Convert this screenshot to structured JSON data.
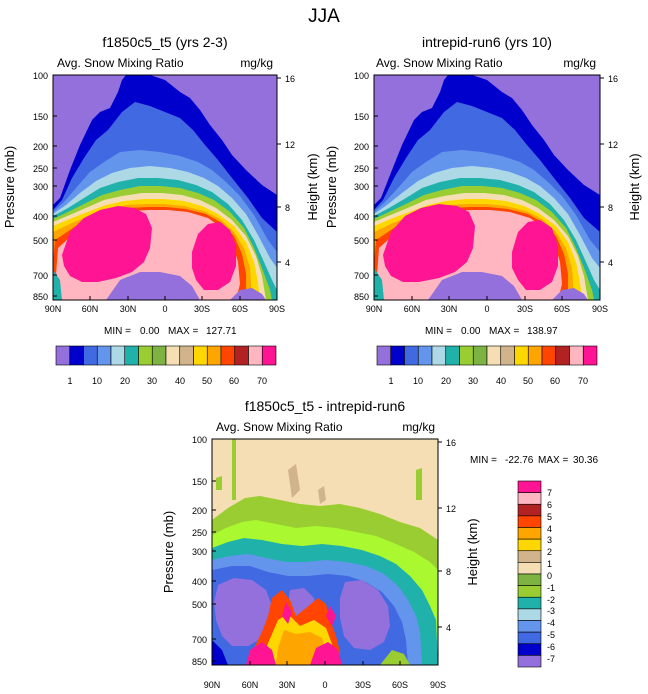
{
  "figure_title": "JJA",
  "colors": {
    "background_purple": "#9370DB",
    "land_tan": "#F5DEB3"
  },
  "chart_data": [
    {
      "type": "heatmap",
      "title": "f1850c5_t5 (yrs 2-3)",
      "left_label": "Avg. Snow Mixing Ratio",
      "right_label": "mg/kg",
      "ylabel": "Pressure (mb)",
      "ylabel_right": "Height (km)",
      "x_ticks": [
        "90N",
        "60N",
        "30N",
        "0",
        "30S",
        "60S",
        "90S"
      ],
      "x_range": [
        90,
        -90
      ],
      "y_ticks": [
        "100",
        "150",
        "200",
        "250",
        "300",
        "400",
        "500",
        "700",
        "850"
      ],
      "y_range": [
        100,
        925
      ],
      "height_ticks": [
        "16",
        "12",
        "8",
        "4"
      ],
      "stats": {
        "min_label": "MIN =",
        "min": "0.00",
        "max_label": "MAX =",
        "max": "127.71"
      },
      "colorbar": {
        "orientation": "horizontal",
        "tick_labels": [
          "1",
          "10",
          "20",
          "30",
          "40",
          "50",
          "60",
          "70"
        ],
        "colors": [
          "#9370DB",
          "#0000CD",
          "#4169E1",
          "#6495ED",
          "#ADD8E6",
          "#20B2AA",
          "#9ACD32",
          "#7CB342",
          "#F5DEB3",
          "#D2B48C",
          "#FFD700",
          "#FFA500",
          "#FF4500",
          "#B22222",
          "#FFB6C1",
          "#FF1493"
        ]
      }
    },
    {
      "type": "heatmap",
      "title": "intrepid-run6 (yrs 10)",
      "left_label": "Avg. Snow Mixing Ratio",
      "right_label": "mg/kg",
      "ylabel": "Pressure (mb)",
      "ylabel_right": "Height (km)",
      "x_ticks": [
        "90N",
        "60N",
        "30N",
        "0",
        "30S",
        "60S",
        "90S"
      ],
      "x_range": [
        90,
        -90
      ],
      "y_ticks": [
        "100",
        "150",
        "200",
        "250",
        "300",
        "400",
        "500",
        "700",
        "850"
      ],
      "y_range": [
        100,
        925
      ],
      "height_ticks": [
        "16",
        "12",
        "8",
        "4"
      ],
      "stats": {
        "min_label": "MIN =",
        "min": "0.00",
        "max_label": "MAX =",
        "max": "138.97"
      },
      "colorbar": {
        "orientation": "horizontal",
        "tick_labels": [
          "1",
          "10",
          "20",
          "30",
          "40",
          "50",
          "60",
          "70"
        ],
        "colors": [
          "#9370DB",
          "#0000CD",
          "#4169E1",
          "#6495ED",
          "#ADD8E6",
          "#20B2AA",
          "#9ACD32",
          "#7CB342",
          "#F5DEB3",
          "#D2B48C",
          "#FFD700",
          "#FFA500",
          "#FF4500",
          "#B22222",
          "#FFB6C1",
          "#FF1493"
        ]
      }
    },
    {
      "type": "heatmap",
      "title": "f1850c5_t5 - intrepid-run6",
      "left_label": "Avg. Snow Mixing Ratio",
      "right_label": "mg/kg",
      "ylabel": "Pressure (mb)",
      "ylabel_right": "Height (km)",
      "x_ticks": [
        "90N",
        "60N",
        "30N",
        "0",
        "30S",
        "60S",
        "90S"
      ],
      "x_range": [
        90,
        -90
      ],
      "y_ticks": [
        "100",
        "150",
        "200",
        "250",
        "300",
        "400",
        "500",
        "700",
        "850"
      ],
      "y_range": [
        100,
        925
      ],
      "height_ticks": [
        "16",
        "12",
        "8",
        "4"
      ],
      "stats": {
        "min_label": "MIN =",
        "min": "-22.76",
        "max_label": "MAX =",
        "max": "30.36"
      },
      "colorbar": {
        "orientation": "vertical",
        "tick_labels": [
          "7",
          "6",
          "5",
          "4",
          "3",
          "2",
          "1",
          "0",
          "-1",
          "-2",
          "-3",
          "-4",
          "-5",
          "-6",
          "-7"
        ],
        "colors": [
          "#FF1493",
          "#FFB6C1",
          "#B22222",
          "#FF4500",
          "#FFA500",
          "#FFD700",
          "#D2B48C",
          "#F5DEB3",
          "#7CB342",
          "#9ACD32",
          "#20B2AA",
          "#ADD8E6",
          "#6495ED",
          "#4169E1",
          "#0000CD",
          "#9370DB"
        ]
      }
    }
  ]
}
